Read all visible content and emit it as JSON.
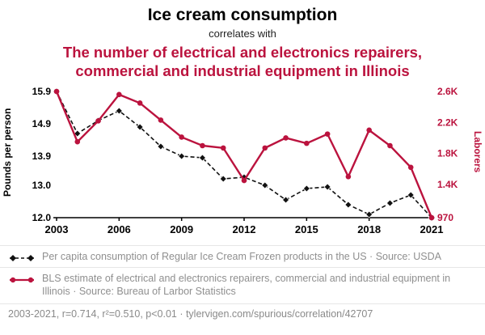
{
  "colors": {
    "red": "#bb133e",
    "black": "#111111",
    "legend_text": "#8f8f8f",
    "footer_text": "#8a8a8a",
    "separator": "#e6e6e6"
  },
  "header": {
    "title": "Ice cream consumption",
    "subtitle": "correlates with",
    "red_title_line1": "The number of electrical and electronics repairers,",
    "red_title_line2": "commercial and industrial equipment in Illinois"
  },
  "legend": {
    "items": [
      {
        "series": "ice-cream",
        "label": "Per capita consumption of Regular Ice Cream Frozen products in the US · Source: USDA"
      },
      {
        "series": "repairers",
        "label": "BLS estimate of electrical and electronics repairers, commercial and industrial equipment in Illinois · Source: Bureau of Larbor Statistics"
      }
    ]
  },
  "footer": {
    "text": "2003-2021, r=0.714, r²=0.510, p<0.01 · tylervigen.com/spurious/correlation/42707"
  },
  "chart_data": {
    "type": "line",
    "x": [
      2003,
      2004,
      2005,
      2006,
      2007,
      2008,
      2009,
      2010,
      2011,
      2012,
      2013,
      2014,
      2015,
      2016,
      2017,
      2018,
      2019,
      2020,
      2021
    ],
    "x_ticks": [
      2003,
      2006,
      2009,
      2012,
      2015,
      2018,
      2021
    ],
    "left_axis": {
      "label": "Pounds per person",
      "min": 12.0,
      "max": 15.9,
      "ticks": [
        15.9,
        14.9,
        13.9,
        13.0,
        12.0
      ],
      "tick_labels": [
        "15.9",
        "14.9",
        "13.9",
        "13.0",
        "12.0"
      ]
    },
    "right_axis": {
      "label": "Laborers",
      "min": 970,
      "max": 2600,
      "ticks": [
        2600,
        2200,
        1800,
        1400,
        970
      ],
      "tick_labels": [
        "2.6K",
        "2.2K",
        "1.8K",
        "1.4K",
        "970"
      ]
    },
    "series": [
      {
        "name": "Per capita consumption of Regular Ice Cream Frozen products in the US",
        "axis": "left",
        "style": "dashed-diamond",
        "values": [
          15.9,
          14.6,
          15.0,
          15.3,
          14.8,
          14.2,
          13.9,
          13.85,
          13.2,
          13.25,
          13.0,
          12.55,
          12.9,
          12.95,
          12.4,
          12.1,
          12.45,
          12.7,
          12.0
        ]
      },
      {
        "name": "BLS estimate of electrical and electronics repairers, commercial and industrial equipment in Illinois",
        "axis": "right",
        "style": "solid-circle",
        "values": [
          2600,
          1950,
          2220,
          2560,
          2450,
          2230,
          2010,
          1900,
          1870,
          1450,
          1870,
          2000,
          1930,
          2050,
          1500,
          2100,
          1900,
          1620,
          970
        ]
      }
    ],
    "grid": false,
    "legend_position": "bottom"
  }
}
